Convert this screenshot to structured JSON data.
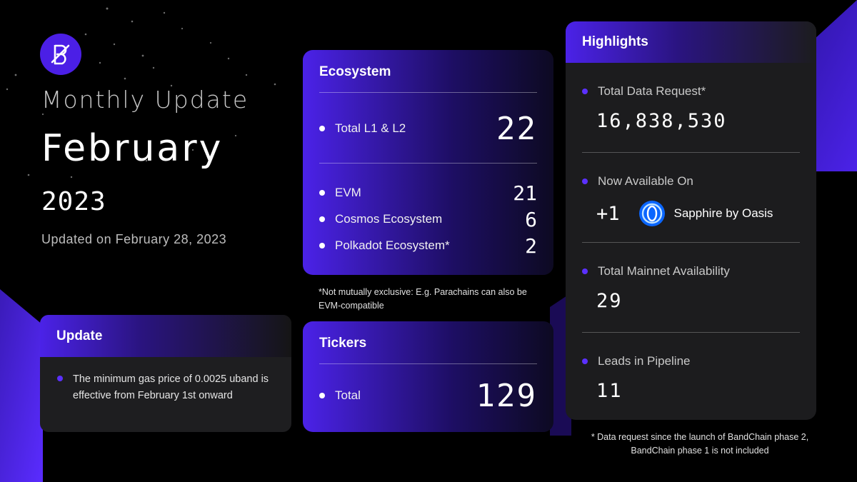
{
  "header": {
    "title_line1": "Monthly Update",
    "month": "February",
    "year": "2023",
    "updated_on": "Updated on February 28, 2023",
    "accent_color": "#4b22e8"
  },
  "update": {
    "title": "Update",
    "text": "The minimum gas price of 0.0025 uband is effective from February 1st onward"
  },
  "ecosystem": {
    "title": "Ecosystem",
    "total_label": "Total L1 & L2",
    "total_value": "22",
    "items": [
      {
        "label": "EVM",
        "value": "21"
      },
      {
        "label": "Cosmos Ecosystem",
        "value": "6"
      },
      {
        "label": "Polkadot Ecosystem*",
        "value": "2"
      }
    ],
    "footnote": "*Not mutually exclusive: E.g. Parachains can also be  EVM-compatible"
  },
  "tickers": {
    "title": "Tickers",
    "total_label": "Total",
    "total_value": "129"
  },
  "highlights": {
    "title": "Highlights",
    "data_request_label": "Total Data Request*",
    "data_request_value": "16,838,530",
    "available_label": "Now Available On",
    "available_plus": "+1",
    "available_chain": "Sapphire by Oasis",
    "mainnet_label": "Total Mainnet Availability",
    "mainnet_value": "29",
    "leads_label": "Leads in Pipeline",
    "leads_value": "11",
    "footnote": "* Data request since the launch of BandChain phase 2, BandChain phase 1 is not included"
  }
}
